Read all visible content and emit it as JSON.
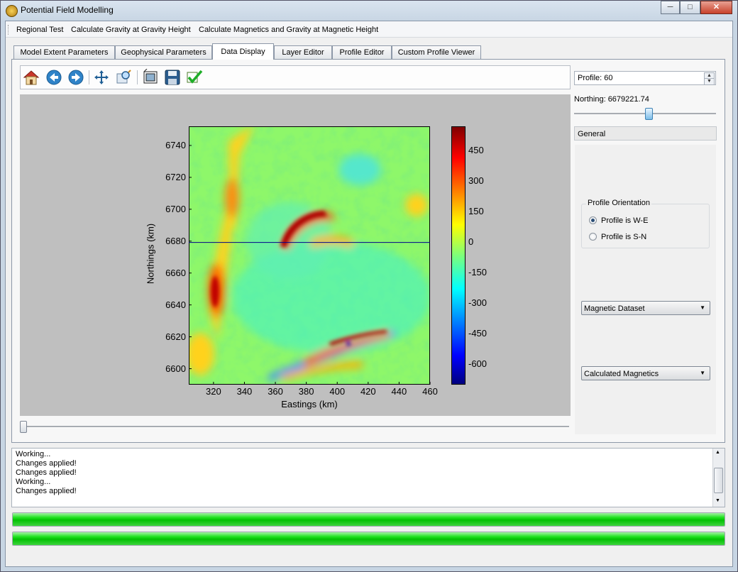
{
  "window": {
    "title": "Potential Field Modelling",
    "minimize_glyph": "─",
    "maximize_glyph": "□",
    "close_glyph": "✕"
  },
  "menu": {
    "items": [
      "Regional Test",
      "Calculate Gravity at Gravity Height",
      "Calculate Magnetics and Gravity at Magnetic Height"
    ]
  },
  "tabs": [
    {
      "label": "Model Extent Parameters"
    },
    {
      "label": "Geophysical Parameters"
    },
    {
      "label": "Data Display",
      "active": true
    },
    {
      "label": "Layer Editor"
    },
    {
      "label": "Profile Editor"
    },
    {
      "label": "Custom Profile Viewer"
    }
  ],
  "toolbar": {
    "icons": [
      "home-icon",
      "back-arrow-icon",
      "forward-arrow-icon",
      "pan-icon",
      "zoom-icon",
      "configure-subplots-icon",
      "save-icon",
      "apply-check-icon"
    ]
  },
  "chart_data": {
    "type": "heatmap",
    "xlabel": "Eastings (km)",
    "ylabel": "Northings (km)",
    "x_ticks": [
      320,
      340,
      360,
      380,
      400,
      420,
      440,
      460
    ],
    "y_ticks": [
      6600,
      6620,
      6640,
      6660,
      6680,
      6700,
      6720,
      6740
    ],
    "xlim": [
      304,
      460
    ],
    "ylim": [
      6590,
      6752
    ],
    "colorbar": {
      "ticks": [
        450,
        300,
        150,
        0,
        -150,
        -300,
        -450,
        -600
      ],
      "range": [
        -700,
        570
      ],
      "colormap": "jet"
    },
    "profile_line_northing": 6679.2
  },
  "right_panel": {
    "profile_label": "Profile: 60",
    "spin_up": "▲",
    "spin_down": "▼",
    "northing_label": "Northing: 6679221.74",
    "northing_slider_fraction": 0.53,
    "section_header": "General",
    "orientation_group_title": "Profile Orientation",
    "orientation_options": [
      {
        "label": "Profile is W-E",
        "checked": true
      },
      {
        "label": "Profile is S-N",
        "checked": false
      }
    ],
    "dataset_combo": "Magnetic Dataset",
    "calc_combo": "Calculated Magnetics",
    "combo_arrow": "▼"
  },
  "profile_slider_fraction": 0.0,
  "log": {
    "lines": [
      "Working...",
      "Changes applied!",
      "Changes applied!",
      "Working...",
      "Changes applied!"
    ],
    "scroll_up": "▲",
    "scroll_down": "▼"
  },
  "progress": [
    {
      "value_percent": 100
    },
    {
      "value_percent": 100
    }
  ],
  "colors": {
    "progress_green": "#06c806",
    "plot_background": "#bfbfbf",
    "profile_line": "#00008b"
  }
}
